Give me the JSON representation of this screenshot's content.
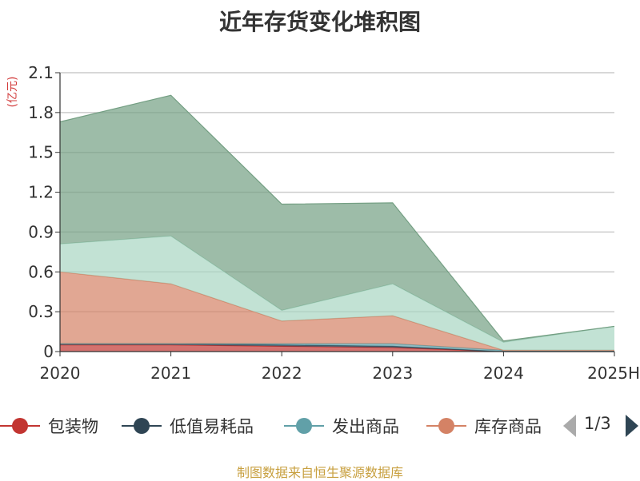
{
  "title": "近年存货变化堆积图",
  "unit_label": "(亿元)",
  "source": "制图数据来自恒生聚源数据库",
  "legend": {
    "items": [
      {
        "label": "包装物",
        "color": "#c23531"
      },
      {
        "label": "低值易耗品",
        "color": "#2f4554"
      },
      {
        "label": "发出商品",
        "color": "#61a0a8"
      },
      {
        "label": "库存商品",
        "color": "#d48265"
      }
    ],
    "page": "1/3"
  },
  "chart_data": {
    "type": "area",
    "stacked": true,
    "categories": [
      "2020",
      "2021",
      "2022",
      "2023",
      "2024",
      "2025H"
    ],
    "ylim": [
      0,
      2.1
    ],
    "yticks": [
      "0",
      "0.3",
      "0.6",
      "0.9",
      "1.2",
      "1.5",
      "1.8",
      "2.1"
    ],
    "grid": true,
    "legend_position": "bottom",
    "series": [
      {
        "name": "包装物",
        "color": "#c23531",
        "values": [
          0.05,
          0.05,
          0.04,
          0.03,
          0.0,
          0.0
        ]
      },
      {
        "name": "低值易耗品",
        "color": "#2f4554",
        "values": [
          0.01,
          0.01,
          0.01,
          0.01,
          0.0,
          0.0
        ]
      },
      {
        "name": "发出商品",
        "color": "#61a0a8",
        "values": [
          0.0,
          0.0,
          0.01,
          0.02,
          0.01,
          0.01
        ]
      },
      {
        "name": "库存商品",
        "color": "#d48265",
        "values": [
          0.54,
          0.45,
          0.17,
          0.21,
          0.0,
          0.0
        ]
      },
      {
        "color": "#a8d5c2",
        "values": [
          0.21,
          0.36,
          0.08,
          0.24,
          0.06,
          0.18
        ]
      },
      {
        "color": "#749f83",
        "values": [
          0.92,
          1.06,
          0.8,
          0.61,
          0.01,
          0.0
        ]
      }
    ]
  }
}
